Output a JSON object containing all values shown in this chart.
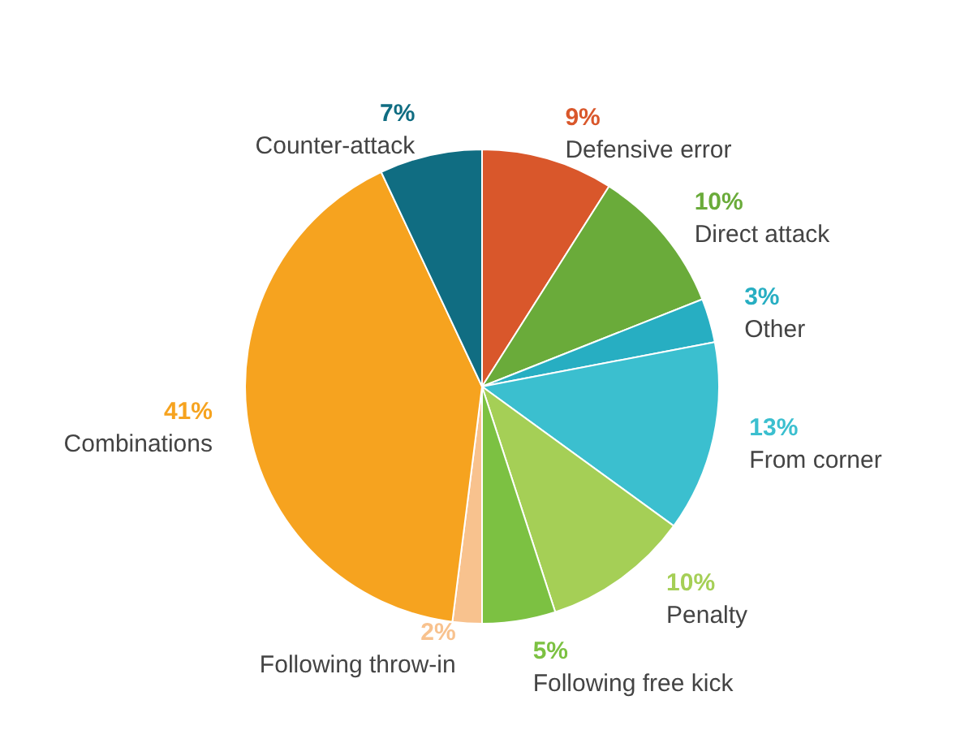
{
  "chart_data": {
    "type": "pie",
    "categories": [
      "Defensive error",
      "Direct attack",
      "Other",
      "From corner",
      "Penalty",
      "Following free kick",
      "Following throw-in",
      "Combinations",
      "Counter-attack"
    ],
    "values": [
      9,
      10,
      3,
      13,
      10,
      5,
      2,
      41,
      7
    ],
    "colors": [
      "#d9572b",
      "#6aab3a",
      "#27aec2",
      "#3bbfcf",
      "#a5cf56",
      "#7cc142",
      "#f8c28e",
      "#f6a31f",
      "#106d82"
    ],
    "value_labels": [
      "9%",
      "10%",
      "3%",
      "13%",
      "10%",
      "5%",
      "2%",
      "41%",
      "7%"
    ],
    "legend": false
  }
}
